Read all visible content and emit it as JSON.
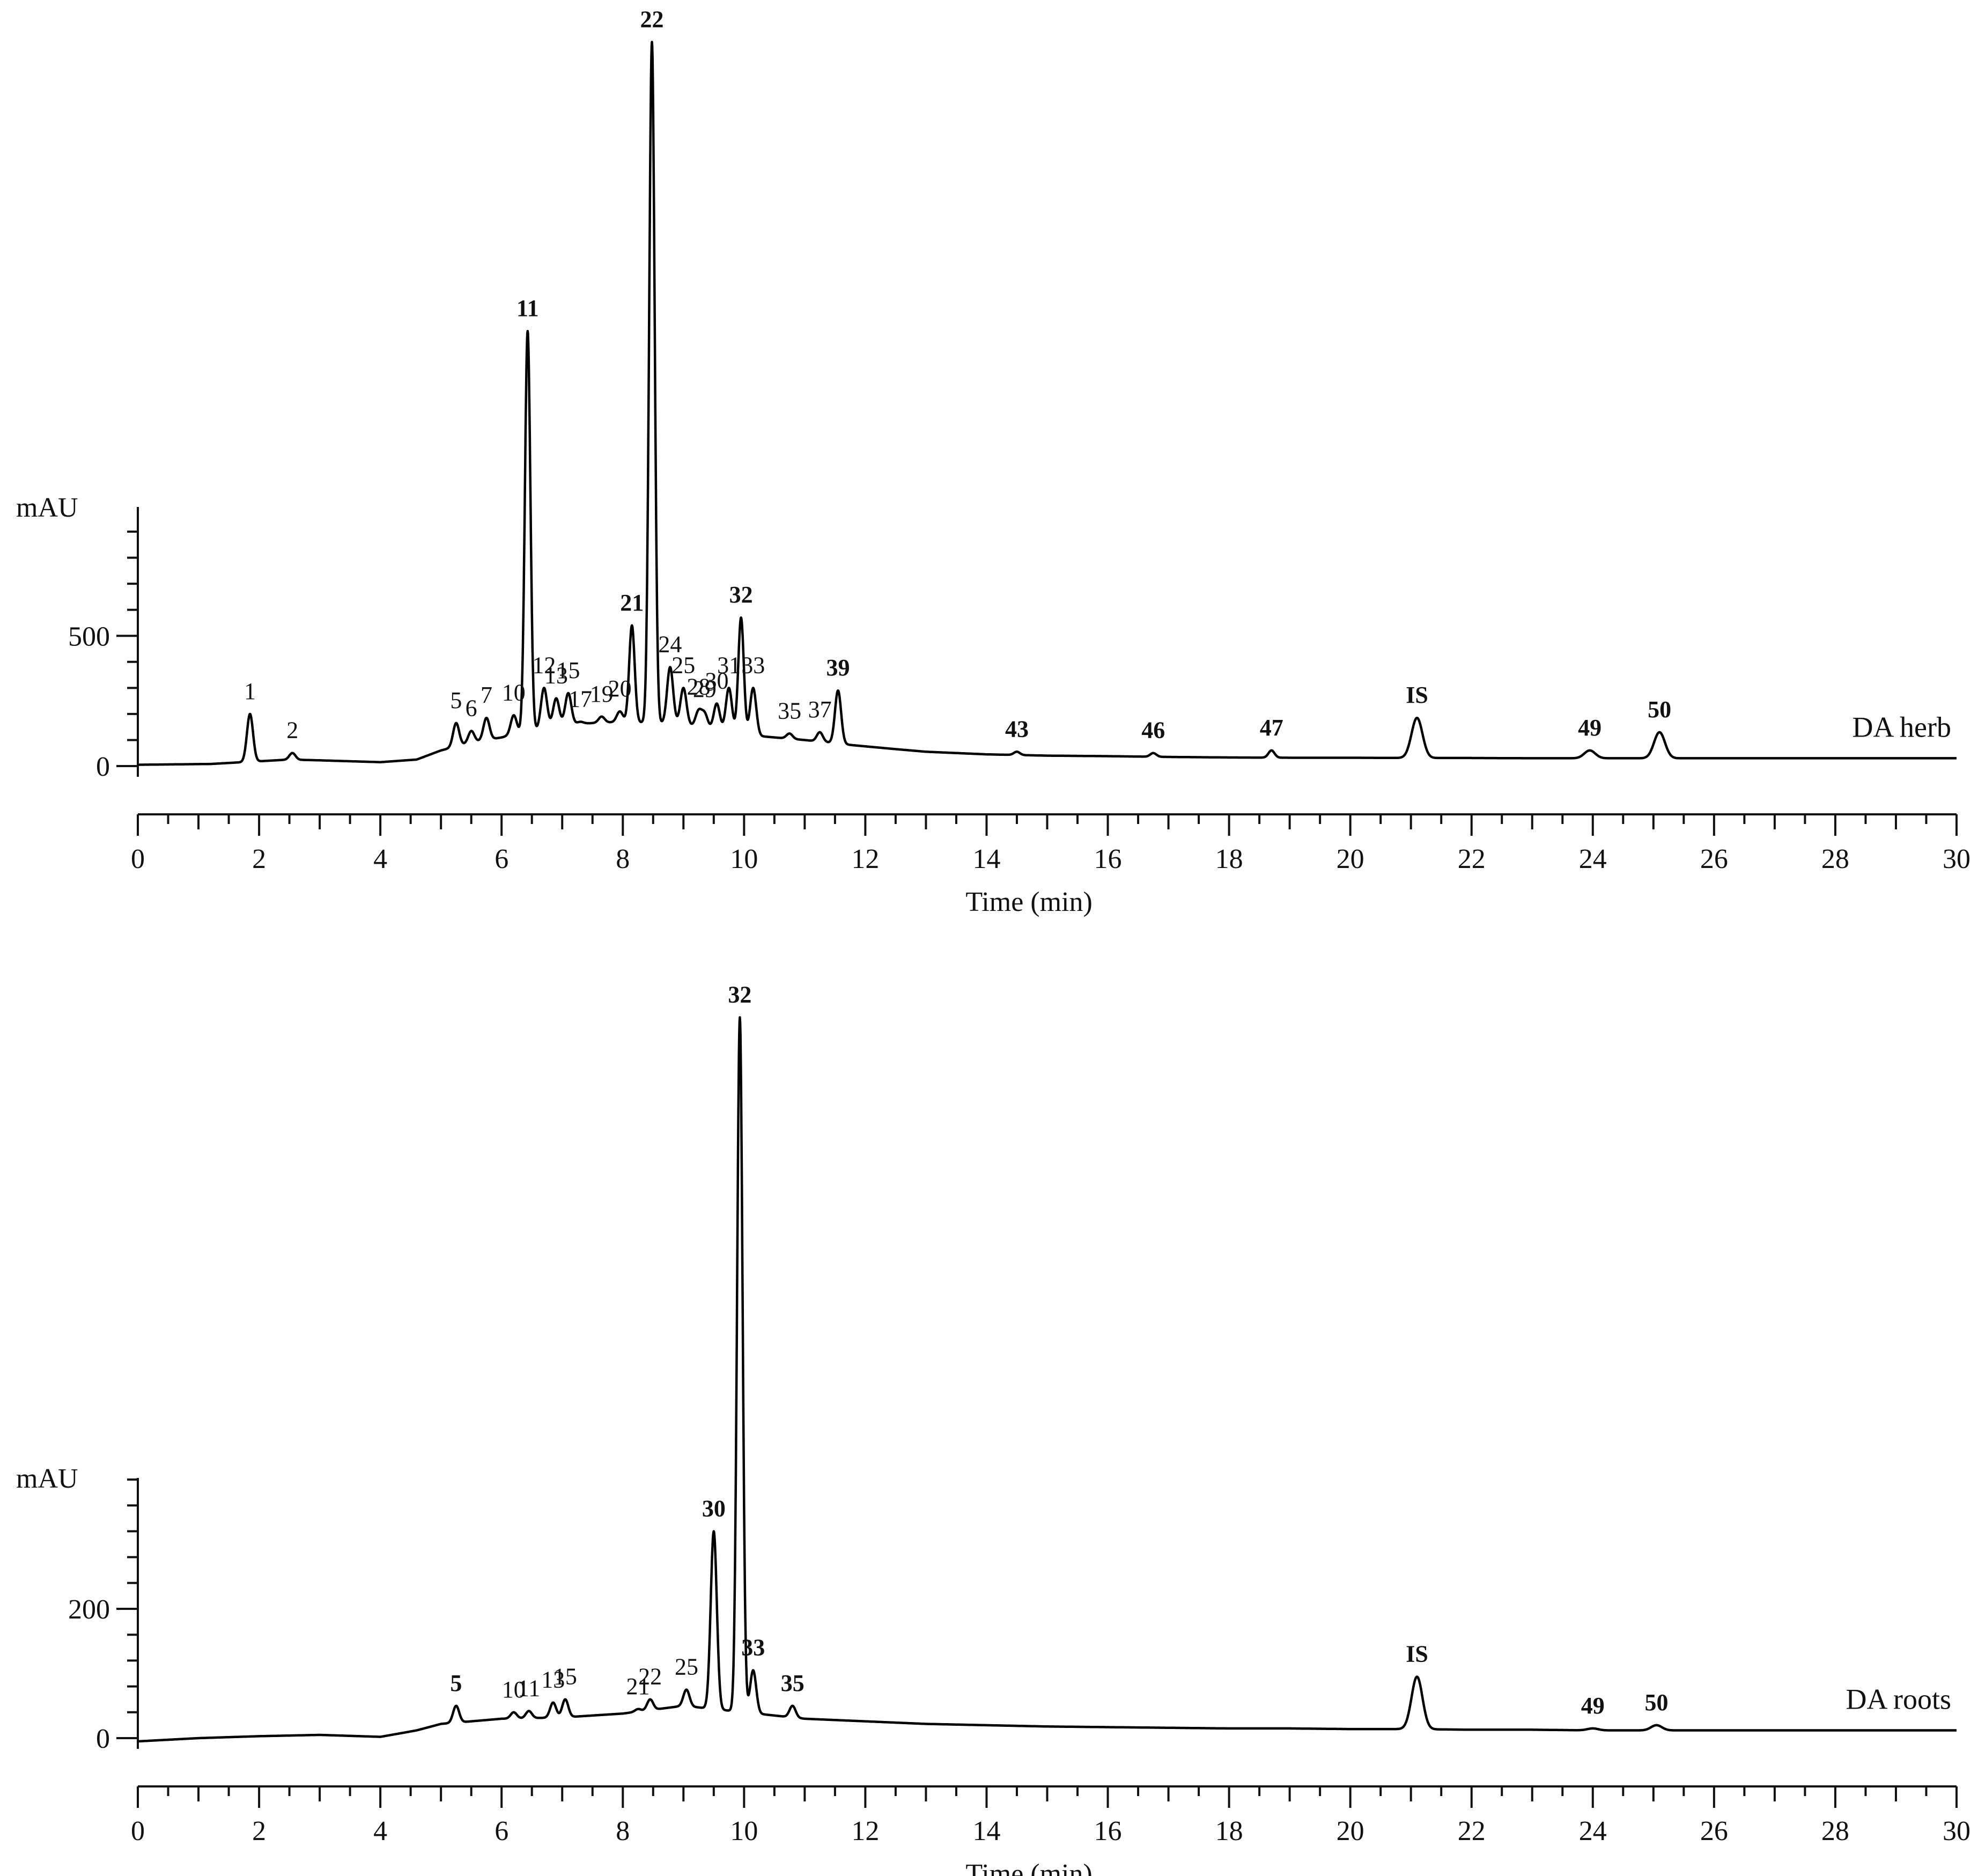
{
  "figure": {
    "description_panels": [
      "DA herb",
      "DA roots"
    ]
  },
  "chart_data": [
    {
      "type": "line",
      "sample_label": "DA herb",
      "xlabel": "Time (min)",
      "ylabel": "mAU",
      "xlim": [
        0,
        30
      ],
      "ylim": [
        0,
        1000
      ],
      "x_ticks": [
        0,
        2,
        4,
        6,
        8,
        10,
        12,
        14,
        16,
        18,
        20,
        22,
        24,
        26,
        28,
        30
      ],
      "y_ticks": [
        0,
        500
      ],
      "grid": false,
      "baseline": [
        [
          0,
          5
        ],
        [
          1.2,
          8
        ],
        [
          2.5,
          25
        ],
        [
          3,
          22
        ],
        [
          4,
          15
        ],
        [
          4.6,
          25
        ],
        [
          5,
          60
        ],
        [
          5.5,
          90
        ],
        [
          6,
          110
        ],
        [
          7,
          160
        ],
        [
          8,
          170
        ],
        [
          9,
          160
        ],
        [
          10,
          120
        ],
        [
          11,
          100
        ],
        [
          11.8,
          80
        ],
        [
          12.5,
          65
        ],
        [
          13,
          55
        ],
        [
          14,
          45
        ],
        [
          15,
          40
        ],
        [
          16,
          38
        ],
        [
          17,
          35
        ],
        [
          18,
          33
        ],
        [
          19,
          32
        ],
        [
          20,
          32
        ],
        [
          21,
          31
        ],
        [
          22,
          31
        ],
        [
          23,
          30
        ],
        [
          24,
          30
        ],
        [
          25,
          30
        ],
        [
          26,
          30
        ],
        [
          27,
          30
        ],
        [
          28,
          30
        ],
        [
          29,
          30
        ],
        [
          30,
          30
        ]
      ],
      "peaks": [
        {
          "label": "1",
          "bold": false,
          "x": 1.85,
          "y": 200
        },
        {
          "label": "2",
          "bold": false,
          "x": 2.55,
          "y": 50
        },
        {
          "label": "5",
          "bold": false,
          "x": 5.25,
          "y": 165
        },
        {
          "label": "6",
          "bold": false,
          "x": 5.5,
          "y": 135
        },
        {
          "label": "7",
          "bold": false,
          "x": 5.75,
          "y": 185
        },
        {
          "label": "10",
          "bold": false,
          "x": 6.2,
          "y": 195
        },
        {
          "label": "11",
          "bold": true,
          "x": 6.43,
          "y": 1670
        },
        {
          "label": "12",
          "bold": false,
          "x": 6.7,
          "y": 300
        },
        {
          "label": "13",
          "bold": false,
          "x": 6.9,
          "y": 260
        },
        {
          "label": "15",
          "bold": false,
          "x": 7.1,
          "y": 280
        },
        {
          "label": "17",
          "bold": false,
          "x": 7.3,
          "y": 170
        },
        {
          "label": "19",
          "bold": false,
          "x": 7.65,
          "y": 190
        },
        {
          "label": "20",
          "bold": false,
          "x": 7.95,
          "y": 210
        },
        {
          "label": "21",
          "bold": true,
          "x": 8.15,
          "y": 540
        },
        {
          "label": "22",
          "bold": true,
          "x": 8.48,
          "y": 2780
        },
        {
          "label": "24",
          "bold": false,
          "x": 8.78,
          "y": 380
        },
        {
          "label": "25",
          "bold": false,
          "x": 9.0,
          "y": 300
        },
        {
          "label": "28",
          "bold": false,
          "x": 9.25,
          "y": 210
        },
        {
          "label": "29",
          "bold": false,
          "x": 9.35,
          "y": 200
        },
        {
          "label": "30",
          "bold": false,
          "x": 9.55,
          "y": 240
        },
        {
          "label": "31",
          "bold": false,
          "x": 9.75,
          "y": 300
        },
        {
          "label": "32",
          "bold": true,
          "x": 9.95,
          "y": 570
        },
        {
          "label": "33",
          "bold": false,
          "x": 10.15,
          "y": 300
        },
        {
          "label": "35",
          "bold": false,
          "x": 10.75,
          "y": 125
        },
        {
          "label": "37",
          "bold": false,
          "x": 11.25,
          "y": 130
        },
        {
          "label": "39",
          "bold": true,
          "x": 11.55,
          "y": 290
        },
        {
          "label": "43",
          "bold": true,
          "x": 14.5,
          "y": 55
        },
        {
          "label": "46",
          "bold": true,
          "x": 16.75,
          "y": 50
        },
        {
          "label": "47",
          "bold": true,
          "x": 18.7,
          "y": 60
        },
        {
          "label": "IS",
          "bold": true,
          "x": 21.1,
          "y": 185
        },
        {
          "label": "49",
          "bold": true,
          "x": 23.95,
          "y": 60
        },
        {
          "label": "50",
          "bold": true,
          "x": 25.1,
          "y": 130
        }
      ]
    },
    {
      "type": "line",
      "sample_label": "DA roots",
      "xlabel": "Time (min)",
      "ylabel": "mAU",
      "xlim": [
        0,
        30
      ],
      "ylim": [
        0,
        400
      ],
      "x_ticks": [
        0,
        2,
        4,
        6,
        8,
        10,
        12,
        14,
        16,
        18,
        20,
        22,
        24,
        26,
        28,
        30
      ],
      "y_ticks": [
        0,
        200
      ],
      "grid": false,
      "baseline": [
        [
          0,
          -5
        ],
        [
          1,
          0
        ],
        [
          2,
          3
        ],
        [
          3,
          5
        ],
        [
          4,
          2
        ],
        [
          4.6,
          12
        ],
        [
          5,
          22
        ],
        [
          6,
          30
        ],
        [
          7,
          32
        ],
        [
          8,
          38
        ],
        [
          9,
          50
        ],
        [
          10,
          40
        ],
        [
          11,
          30
        ],
        [
          12,
          26
        ],
        [
          13,
          22
        ],
        [
          14,
          20
        ],
        [
          15,
          18
        ],
        [
          16,
          17
        ],
        [
          17,
          16
        ],
        [
          18,
          15
        ],
        [
          19,
          15
        ],
        [
          20,
          14
        ],
        [
          21,
          14
        ],
        [
          22,
          13
        ],
        [
          23,
          13
        ],
        [
          24,
          12
        ],
        [
          25,
          12
        ],
        [
          26,
          12
        ],
        [
          27,
          12
        ],
        [
          28,
          12
        ],
        [
          29,
          12
        ],
        [
          30,
          12
        ]
      ],
      "peaks": [
        {
          "label": "5",
          "bold": true,
          "x": 5.25,
          "y": 50
        },
        {
          "label": "10",
          "bold": false,
          "x": 6.2,
          "y": 40
        },
        {
          "label": "11",
          "bold": false,
          "x": 6.45,
          "y": 42
        },
        {
          "label": "13",
          "bold": false,
          "x": 6.85,
          "y": 55
        },
        {
          "label": "15",
          "bold": false,
          "x": 7.05,
          "y": 60
        },
        {
          "label": "21",
          "bold": false,
          "x": 8.25,
          "y": 45
        },
        {
          "label": "22",
          "bold": false,
          "x": 8.45,
          "y": 60
        },
        {
          "label": "25",
          "bold": false,
          "x": 9.05,
          "y": 75
        },
        {
          "label": "30",
          "bold": true,
          "x": 9.5,
          "y": 320
        },
        {
          "label": "32",
          "bold": true,
          "x": 9.93,
          "y": 1115
        },
        {
          "label": "33",
          "bold": true,
          "x": 10.15,
          "y": 105
        },
        {
          "label": "35",
          "bold": true,
          "x": 10.8,
          "y": 50
        },
        {
          "label": "IS",
          "bold": true,
          "x": 21.1,
          "y": 95
        },
        {
          "label": "49",
          "bold": true,
          "x": 24.0,
          "y": 15
        },
        {
          "label": "50",
          "bold": true,
          "x": 25.05,
          "y": 20
        }
      ]
    }
  ]
}
